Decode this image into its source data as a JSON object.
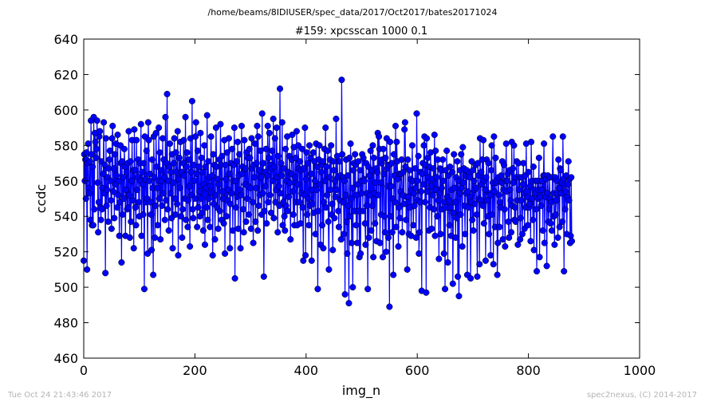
{
  "header": {
    "path": "/home/beams/8IDIUSER/spec_data/2017/Oct2017/bates20171024"
  },
  "footer": {
    "timestamp": "Tue Oct 24 21:43:46 2017",
    "credit": "spec2nexus, (C) 2014-2017"
  },
  "colors": {
    "series": "#0000ff"
  },
  "chart_data": {
    "type": "line",
    "title": "#159: xpcsscan 1000 0.1",
    "xlabel": "img_n",
    "ylabel": "ccdc",
    "xlim": [
      0,
      1000
    ],
    "ylim": [
      460,
      640
    ],
    "xticks": [
      0,
      200,
      400,
      600,
      800,
      1000
    ],
    "yticks": [
      460,
      480,
      500,
      520,
      540,
      560,
      580,
      600,
      620,
      640
    ],
    "grid": false,
    "legend": "none",
    "marker": "circle",
    "series": [
      {
        "x_start": 0,
        "x_step": 1,
        "values": [
          515,
          575,
          560,
          572,
          550,
          576,
          510,
          570,
          581,
          556,
          553,
          571,
          538,
          594,
          575,
          535,
          568,
          535,
          596,
          544,
          587,
          582,
          573,
          578,
          594,
          559,
          531,
          548,
          585,
          588,
          545,
          538,
          571,
          544,
          556,
          564,
          593,
          553,
          569,
          508,
          584,
          546,
          555,
          562,
          537,
          567,
          572,
          577,
          560,
          549,
          533,
          584,
          591,
          554,
          567,
          539,
          575,
          558,
          581,
          563,
          545,
          586,
          552,
          560,
          529,
          548,
          580,
          570,
          514,
          571,
          541,
          562,
          550,
          578,
          568,
          529,
          555,
          565,
          544,
          570,
          545,
          588,
          552,
          528,
          571,
          537,
          560,
          583,
          549,
          566,
          522,
          589,
          566,
          545,
          535,
          583,
          555,
          562,
          572,
          548,
          540,
          570,
          560,
          592,
          529,
          565,
          558,
          541,
          570,
          499,
          585,
          561,
          548,
          577,
          550,
          519,
          593,
          583,
          560,
          564,
          548,
          541,
          521,
          572,
          556,
          507,
          585,
          562,
          528,
          546,
          587,
          568,
          556,
          535,
          560,
          590,
          550,
          576,
          527,
          566,
          560,
          546,
          584,
          553,
          572,
          562,
          538,
          596,
          549,
          570,
          609,
          544,
          560,
          532,
          568,
          581,
          553,
          565,
          539,
          575,
          522,
          559,
          570,
          584,
          550,
          541,
          576,
          565,
          547,
          588,
          518,
          561,
          573,
          556,
          582,
          540,
          565,
          528,
          544,
          570,
          583,
          563,
          550,
          596,
          538,
          568,
          576,
          534,
          549,
          572,
          557,
          523,
          584,
          565,
          552,
          605,
          544,
          539,
          569,
          560,
          550,
          585,
          593,
          564,
          534,
          577,
          545,
          568,
          554,
          540,
          587,
          550,
          573,
          542,
          565,
          532,
          558,
          580,
          524,
          568,
          556,
          545,
          597,
          538,
          571,
          550,
          562,
          534,
          557,
          585,
          553,
          563,
          518,
          575,
          547,
          569,
          527,
          552,
          590,
          568,
          545,
          561,
          533,
          558,
          572,
          543,
          592,
          569,
          538,
          574,
          554,
          550,
          536,
          583,
          519,
          569,
          561,
          540,
          576,
          549,
          555,
          584,
          564,
          522,
          547,
          570,
          553,
          578,
          532,
          560,
          569,
          590,
          505,
          560,
          545,
          571,
          551,
          582,
          533,
          563,
          575,
          555,
          522,
          552,
          591,
          564,
          568,
          544,
          531,
          583,
          558,
          567,
          537,
          576,
          550,
          573,
          557,
          541,
          578,
          573,
          556,
          533,
          584,
          567,
          548,
          525,
          569,
          562,
          581,
          537,
          556,
          570,
          591,
          532,
          585,
          546,
          566,
          552,
          577,
          562,
          541,
          598,
          553,
          570,
          506,
          543,
          565,
          557,
          578,
          536,
          563,
          591,
          548,
          573,
          587,
          552,
          569,
          542,
          567,
          577,
          560,
          595,
          539,
          568,
          584,
          548,
          555,
          590,
          562,
          531,
          574,
          557,
          546,
          612,
          553,
          570,
          563,
          593,
          535,
          548,
          567,
          540,
          532,
          578,
          546,
          560,
          585,
          543,
          565,
          551,
          574,
          559,
          527,
          564,
          572,
          586,
          554,
          541,
          579,
          535,
          562,
          573,
          548,
          588,
          535,
          558,
          580,
          567,
          548,
          571,
          536,
          566,
          553,
          578,
          545,
          515,
          567,
          552,
          590,
          518,
          561,
          576,
          541,
          570,
          550,
          535,
          580,
          546,
          573,
          564,
          515,
          555,
          547,
          576,
          542,
          571,
          560,
          530,
          581,
          555,
          568,
          499,
          543,
          572,
          580,
          558,
          524,
          565,
          569,
          535,
          571,
          522,
          548,
          578,
          560,
          590,
          545,
          568,
          552,
          577,
          537,
          510,
          562,
          572,
          555,
          580,
          541,
          547,
          521,
          571,
          566,
          539,
          560,
          551,
          595,
          555,
          574,
          562,
          543,
          534,
          571,
          549,
          563,
          527,
          617,
          575,
          548,
          562,
          530,
          560,
          496,
          552,
          572,
          537,
          519,
          563,
          546,
          491,
          573,
          540,
          581,
          550,
          525,
          556,
          500,
          566,
          570,
          543,
          575,
          569,
          535,
          552,
          525,
          558,
          571,
          543,
          517,
          566,
          519,
          560,
          553,
          575,
          543,
          573,
          561,
          560,
          536,
          524,
          570,
          546,
          553,
          499,
          568,
          528,
          563,
          552,
          577,
          532,
          566,
          546,
          580,
          517,
          573,
          553,
          536,
          559,
          567,
          526,
          565,
          587,
          552,
          585,
          578,
          525,
          559,
          541,
          570,
          572,
          517,
          578,
          564,
          540,
          531,
          573,
          520,
          584,
          567,
          557,
          528,
          569,
          489,
          582,
          540,
          557,
          570,
          531,
          550,
          507,
          575,
          563,
          548,
          591,
          534,
          582,
          571,
          561,
          523,
          545,
          564,
          539,
          554,
          564,
          572,
          531,
          552,
          565,
          547,
          589,
          593,
          568,
          538,
          551,
          510,
          572,
          551,
          530,
          566,
          545,
          561,
          529,
          555,
          580,
          560,
          535,
          553,
          546,
          567,
          556,
          528,
          598,
          560,
          549,
          574,
          519,
          531,
          548,
          565,
          554,
          498,
          564,
          570,
          558,
          580,
          585,
          548,
          569,
          497,
          584,
          554,
          573,
          562,
          532,
          568,
          545,
          576,
          557,
          533,
          561,
          552,
          567,
          544,
          586,
          529,
          577,
          555,
          562,
          540,
          572,
          549,
          516,
          553,
          567,
          530,
          566,
          556,
          544,
          572,
          560,
          519,
          548,
          499,
          566,
          545,
          577,
          551,
          514,
          563,
          549,
          535,
          568,
          545,
          529,
          555,
          565,
          502,
          542,
          575,
          556,
          548,
          528,
          562,
          539,
          571,
          506,
          560,
          495,
          553,
          566,
          541,
          575,
          556,
          523,
          579,
          559,
          567,
          546,
          530,
          563,
          553,
          566,
          507,
          554,
          545,
          564,
          562,
          551,
          505,
          548,
          571,
          538,
          566,
          532,
          560,
          555,
          547,
          569,
          556,
          541,
          506,
          570,
          563,
          550,
          513,
          584,
          549,
          565,
          558,
          572,
          546,
          583,
          536,
          560,
          555,
          515,
          562,
          572,
          549,
          540,
          570,
          530,
          553,
          552,
          518,
          566,
          580,
          541,
          559,
          513,
          585,
          554,
          534,
          573,
          559,
          560,
          507,
          525,
          562,
          552,
          534,
          548,
          545,
          563,
          559,
          571,
          527,
          555,
          569,
          544,
          523,
          560,
          581,
          554,
          560,
          564,
          537,
          528,
          566,
          555,
          549,
          531,
          582,
          546,
          567,
          559,
          580,
          538,
          545,
          537,
          562,
          571,
          549,
          524,
          570,
          555,
          562,
          527,
          539,
          549,
          562,
          530,
          558,
          570,
          553,
          533,
          563,
          545,
          581,
          554,
          551,
          535,
          565,
          545,
          547,
          557,
          526,
          582,
          560,
          550,
          538,
          568,
          521,
          555,
          553,
          560,
          544,
          509,
          560,
          550,
          555,
          573,
          517,
          551,
          560,
          546,
          555,
          560,
          532,
          563,
          581,
          525,
          563,
          551,
          561,
          512,
          553,
          563,
          537,
          544,
          562,
          550,
          536,
          548,
          532,
          562,
          585,
          553,
          540,
          524,
          562,
          541,
          549,
          560,
          553,
          528,
          572,
          556,
          534,
          567,
          566,
          553,
          559,
          537,
          585,
          561,
          509,
          558,
          544,
          554,
          563,
          530,
          551,
          558,
          571,
          549,
          561,
          525,
          529,
          562,
          526
        ]
      }
    ]
  }
}
